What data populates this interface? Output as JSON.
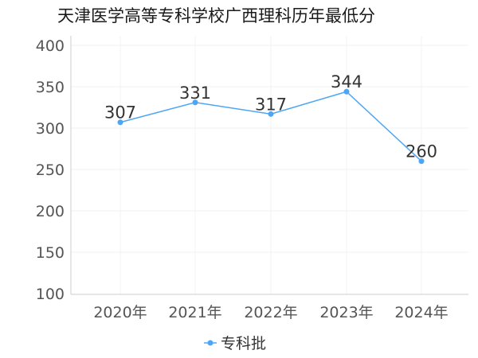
{
  "chart_data": {
    "type": "line",
    "title": "天津医学高等专科学校广西理科历年最低分",
    "categories": [
      "2020年",
      "2021年",
      "2022年",
      "2023年",
      "2024年"
    ],
    "series": [
      {
        "name": "专科批",
        "values": [
          307,
          331,
          317,
          344,
          260
        ],
        "color": "#4da6f5"
      }
    ],
    "ylim": [
      100,
      400
    ],
    "yticks": [
      100,
      150,
      200,
      250,
      300,
      350,
      400
    ],
    "xlabel": "",
    "ylabel": "",
    "grid": true,
    "legend": "bottom-center"
  }
}
